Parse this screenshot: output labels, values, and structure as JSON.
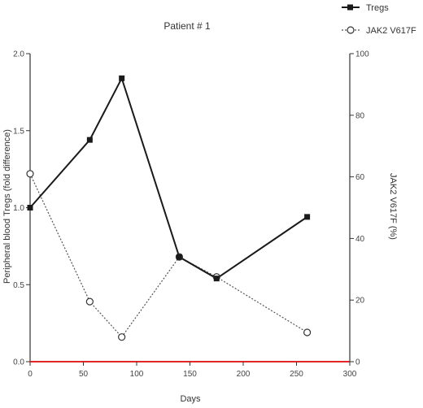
{
  "chart_data": {
    "type": "line",
    "title": "Patient # 1",
    "xlabel": "Days",
    "ylabel_left": "Peripheral blood Tregs (fold difference)",
    "ylabel_right": "JAK2 V617F (%)",
    "xlim": [
      0,
      300
    ],
    "ylim_left": [
      0.0,
      2.0
    ],
    "ylim_right": [
      0,
      100
    ],
    "x_ticks": [
      0,
      50,
      100,
      150,
      200,
      250,
      300
    ],
    "y_ticks_left": [
      0.0,
      0.5,
      1.0,
      1.5,
      2.0
    ],
    "y_ticks_left_labels": [
      "0.0",
      "0.5",
      "1.0",
      "1.5",
      "2.0"
    ],
    "y_ticks_right": [
      0,
      20,
      40,
      60,
      80,
      100
    ],
    "legend_position": "top-right",
    "grid": false,
    "series": [
      {
        "name": "Tregs",
        "axis": "left",
        "marker": "filled-square",
        "line": "solid",
        "points": [
          [
            0,
            1.0
          ],
          [
            56,
            1.44
          ],
          [
            86,
            1.84
          ],
          [
            140,
            0.68
          ],
          [
            175,
            0.54
          ],
          [
            260,
            0.94
          ]
        ]
      },
      {
        "name": "JAK2 V617F",
        "axis": "right",
        "marker": "open-circle",
        "line": "dotted",
        "points": [
          [
            0,
            61
          ],
          [
            56,
            19.5
          ],
          [
            86,
            8
          ],
          [
            140,
            34
          ],
          [
            175,
            27.5
          ],
          [
            260,
            9.5
          ]
        ]
      }
    ],
    "colors": {
      "series_line": "#1a1a1a",
      "axis": "#333333",
      "baseline": "#e32626"
    }
  }
}
